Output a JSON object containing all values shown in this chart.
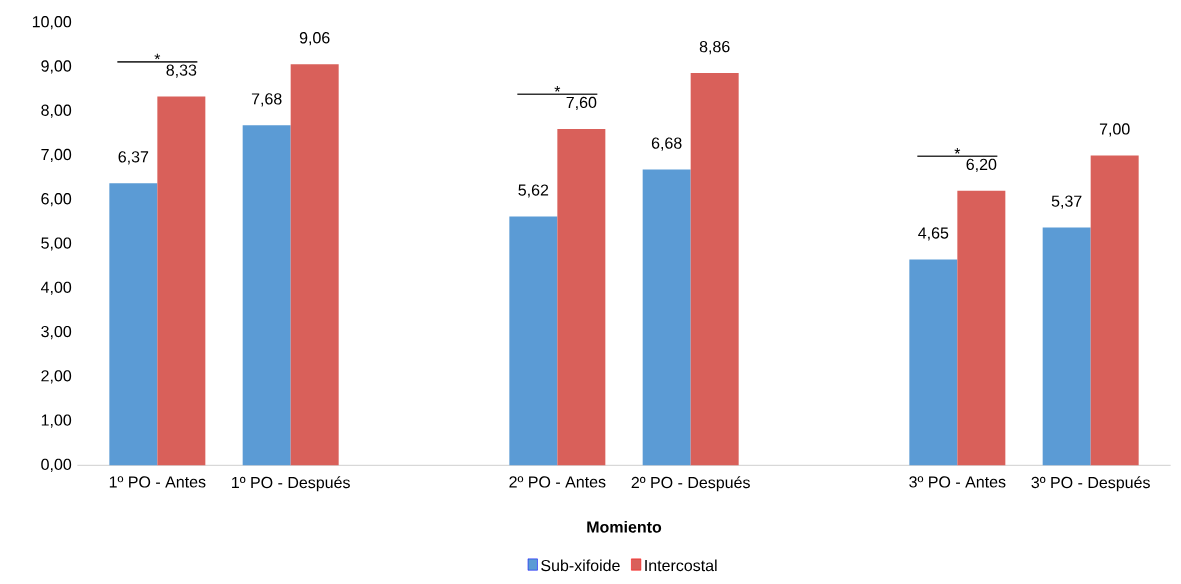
{
  "chart_data": {
    "type": "bar",
    "xlabel": "Momiento",
    "categories": [
      "1º PO - Antes",
      "1º PO - Después",
      null,
      "2º PO - Antes",
      "2º PO - Después",
      null,
      "3º PO - Antes",
      "3º PO - Después"
    ],
    "series": [
      {
        "name": "Sub-xifoide",
        "color": "#5b9bd5",
        "values": [
          6.37,
          7.68,
          null,
          5.62,
          6.68,
          null,
          4.65,
          5.37
        ],
        "value_labels": [
          "6,37",
          "7,68",
          null,
          "5,62",
          "6,68",
          null,
          "4,65",
          "5,37"
        ]
      },
      {
        "name": "Intercostal",
        "color": "#d9605a",
        "values": [
          8.33,
          9.06,
          null,
          7.6,
          8.86,
          null,
          6.2,
          7.0
        ],
        "value_labels": [
          "8,33",
          "9,06",
          null,
          "7,60",
          "8,86",
          null,
          "6,20",
          "7,00"
        ]
      }
    ],
    "ylim": [
      0,
      10
    ],
    "yticks": [
      {
        "value": 0,
        "label": "0,00"
      },
      {
        "value": 1,
        "label": "1,00"
      },
      {
        "value": 2,
        "label": "2,00"
      },
      {
        "value": 3,
        "label": "3,00"
      },
      {
        "value": 4,
        "label": "4,00"
      },
      {
        "value": 5,
        "label": "5,00"
      },
      {
        "value": 6,
        "label": "6,00"
      },
      {
        "value": 7,
        "label": "7,00"
      },
      {
        "value": 8,
        "label": "8,00"
      },
      {
        "value": 9,
        "label": "9,00"
      },
      {
        "value": 10,
        "label": "10,00"
      }
    ],
    "annotations": [
      "*",
      "*",
      "*"
    ],
    "grid": false,
    "legend": "bottom"
  }
}
